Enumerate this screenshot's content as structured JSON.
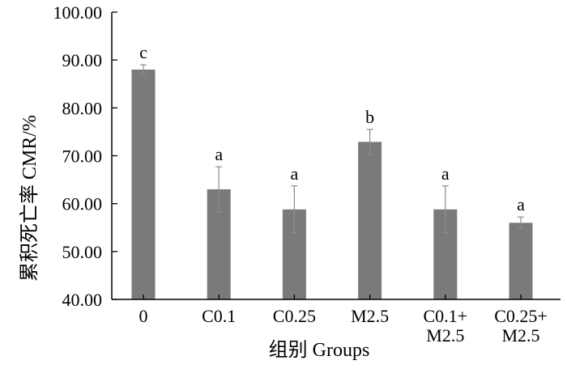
{
  "chart_data": {
    "type": "bar",
    "categories": [
      [
        "0"
      ],
      [
        "C0.1"
      ],
      [
        "C0.25"
      ],
      [
        "M2.5"
      ],
      [
        "C0.1+",
        "M2.5"
      ],
      [
        "C0.25+",
        "M2.5"
      ]
    ],
    "values": [
      88.0,
      63.0,
      58.8,
      72.9,
      58.8,
      56.0
    ],
    "errors": [
      1.0,
      4.7,
      4.9,
      2.6,
      4.9,
      1.2
    ],
    "significance": [
      "c",
      "a",
      "a",
      "b",
      "a",
      "a"
    ],
    "ylim": [
      40,
      100
    ],
    "yticks": [
      "40.00",
      "50.00",
      "60.00",
      "70.00",
      "80.00",
      "90.00",
      "100.00"
    ],
    "xlabel": "组别  Groups",
    "ylabel": "累积死亡率  CMR/%",
    "grid": false,
    "bar_color": "#7a7a7a",
    "error_color": "#8c8c8c"
  }
}
